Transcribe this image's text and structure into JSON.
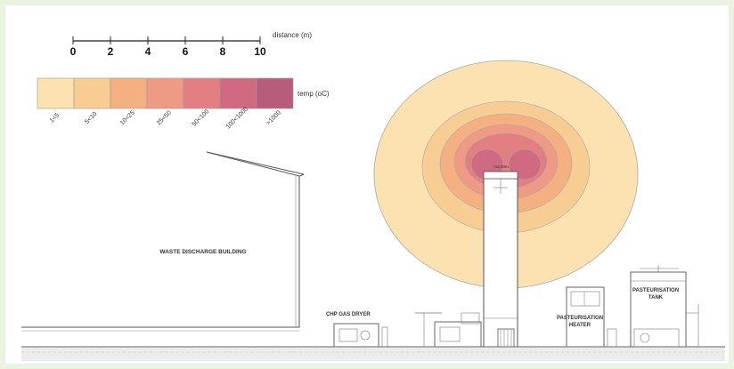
{
  "scale_bar": {
    "label": "distance (m)",
    "ticks": [
      "0",
      "2",
      "4",
      "6",
      "8",
      "10"
    ]
  },
  "legend": {
    "label": "temp (oC)",
    "bins": [
      {
        "range": "1<5",
        "color": "#fbe2b0"
      },
      {
        "range": "5<10",
        "color": "#f8cd93"
      },
      {
        "range": "10<25",
        "color": "#f5b082"
      },
      {
        "range": "25<50",
        "color": "#ee9a84"
      },
      {
        "range": "50<100",
        "color": "#e17f83"
      },
      {
        "range": "100<1000",
        "color": "#cf6a80"
      },
      {
        "range": ">1000",
        "color": "#b85c7c"
      }
    ]
  },
  "labels": {
    "waste_building": "WASTE DISCHARGE BUILDING",
    "chp_dryer": "CHP GAS DRYER",
    "past_heater": "PASTEURISATION\nHEATER",
    "past_tank": "PASTEURISATION\nTANK",
    "stack_top": "+13.00m"
  }
}
